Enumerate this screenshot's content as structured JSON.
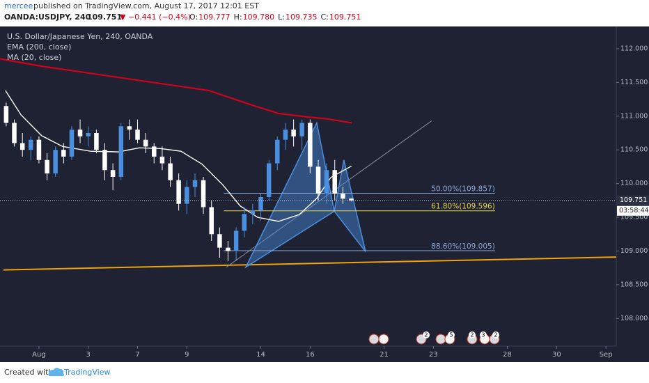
{
  "header": {
    "user": "mercee",
    "published": "published on TradingView.com, August 17, 2017 12:01 EST",
    "symbol": "OANDA:USDJPY, 240",
    "price": "109.751",
    "change": "▼ −0.441 (−0.4%)",
    "ohlc": [
      {
        "key": "O:",
        "value": "109.777"
      },
      {
        "key": "H:",
        "value": "109.780"
      },
      {
        "key": "L:",
        "value": "109.735"
      },
      {
        "key": "C:",
        "value": "109.751"
      }
    ]
  },
  "chart_data": {
    "type": "candlestick",
    "title": "U.S. Dollar/Japanese Yen, 240, OANDA",
    "up_color": "#4a8fe0",
    "down_color": "#ffffff",
    "x": [
      -1.33,
      -1,
      -0.67,
      -0.33,
      0,
      0.33,
      0.67,
      1,
      1.33,
      1.67,
      2,
      2.33,
      2.67,
      3,
      3.33,
      3.67,
      4,
      4.33,
      4.67,
      5,
      5.33,
      5.67,
      6,
      6.33,
      6.67,
      7,
      7.33,
      7.67,
      8,
      8.33,
      8.67,
      9,
      9.33,
      9.67,
      10,
      10.33,
      10.67,
      11,
      11.33,
      11.67,
      12,
      12.33,
      12.67
    ],
    "open": [
      111.15,
      110.9,
      110.6,
      110.5,
      110.65,
      110.35,
      110.15,
      110.5,
      110.4,
      110.8,
      110.7,
      110.75,
      110.5,
      110.2,
      110.1,
      110.85,
      110.8,
      110.65,
      110.55,
      110.4,
      110.3,
      110.05,
      109.7,
      109.95,
      110.05,
      109.65,
      109.25,
      109.05,
      109.0,
      109.3,
      109.55,
      109.6,
      109.8,
      110.3,
      110.65,
      110.8,
      110.7,
      110.9,
      110.25,
      109.85,
      110.2,
      109.85,
      109.777
    ],
    "high": [
      111.2,
      110.95,
      110.75,
      110.7,
      110.7,
      110.45,
      110.55,
      110.6,
      110.85,
      110.95,
      110.85,
      110.8,
      110.6,
      110.3,
      110.9,
      110.95,
      110.95,
      110.75,
      110.6,
      110.55,
      110.4,
      110.15,
      110.05,
      110.15,
      110.1,
      109.75,
      109.35,
      109.15,
      109.35,
      109.65,
      109.7,
      109.85,
      110.35,
      110.7,
      110.9,
      110.95,
      110.95,
      110.95,
      110.35,
      110.3,
      110.35,
      109.95,
      109.78
    ],
    "low": [
      110.85,
      110.55,
      110.4,
      110.35,
      110.3,
      110.05,
      110.1,
      110.3,
      110.35,
      110.6,
      110.55,
      110.45,
      110.05,
      109.9,
      110.05,
      110.65,
      110.6,
      110.45,
      110.3,
      110.2,
      109.95,
      109.6,
      109.55,
      109.8,
      109.55,
      109.15,
      108.9,
      108.85,
      108.85,
      109.2,
      109.4,
      109.45,
      109.75,
      110.2,
      110.5,
      110.55,
      110.5,
      110.15,
      109.75,
      109.7,
      109.75,
      109.7,
      109.735
    ],
    "close": [
      110.9,
      110.6,
      110.5,
      110.65,
      110.35,
      110.15,
      110.5,
      110.4,
      110.8,
      110.7,
      110.75,
      110.5,
      110.2,
      110.1,
      110.85,
      110.8,
      110.65,
      110.55,
      110.4,
      110.3,
      110.05,
      109.7,
      109.95,
      110.05,
      109.65,
      109.25,
      109.05,
      109.0,
      109.3,
      109.55,
      109.6,
      109.8,
      110.3,
      110.65,
      110.8,
      110.7,
      110.9,
      110.25,
      109.85,
      110.2,
      109.85,
      109.777,
      109.751
    ],
    "series": [
      {
        "name": "EMA (200, close)",
        "color": "#d0021b",
        "x": [
          -1.58,
          0.11,
          1.81,
          3.5,
          5.2,
          6.89,
          8.59,
          9.72,
          10.85,
          11.69,
          12.68
        ],
        "values": [
          111.85,
          111.74,
          111.65,
          111.56,
          111.47,
          111.38,
          111.17,
          111.04,
          110.99,
          110.96,
          110.9
        ]
      },
      {
        "name": "MA (20, close)",
        "color": "#ffffff",
        "x": [
          -1.36,
          -0.73,
          0.11,
          0.96,
          2.09,
          3.22,
          4.07,
          4.92,
          5.76,
          6.61,
          7.46,
          8.16,
          8.87,
          9.72,
          10.56,
          11.27,
          11.84,
          12.68
        ],
        "values": [
          111.38,
          111.02,
          110.71,
          110.55,
          110.48,
          110.47,
          110.53,
          110.52,
          110.48,
          110.29,
          109.98,
          109.67,
          109.5,
          109.44,
          109.54,
          109.78,
          110.09,
          110.26
        ]
      }
    ],
    "fib_levels": [
      {
        "label": "50.00%(109.857)",
        "value": 109.857,
        "color": "#8fa9d6"
      },
      {
        "label": "61.80%(109.596)",
        "value": 109.596,
        "color": "#e8d84a"
      },
      {
        "label": "88.60%(109.005)",
        "value": 109.005,
        "color": "#8fa9d6"
      }
    ],
    "fib_x": [
      7.5,
      18.5
    ],
    "trendlines": [
      {
        "color": "#f0a30a",
        "x": [
          -1.44,
          23.42
        ],
        "y": [
          108.72,
          108.91
        ]
      },
      {
        "color": "#8a8f9c",
        "x": [
          7.6,
          15.93
        ],
        "y": [
          108.76,
          110.93
        ]
      }
    ],
    "pattern": [
      {
        "x": [
          8.39,
          11.27,
          11.98
        ],
        "y": [
          108.76,
          110.9,
          109.59
        ]
      },
      {
        "x": [
          11.98,
          12.37,
          13.25
        ],
        "y": [
          109.59,
          110.35,
          108.99
        ]
      }
    ],
    "pattern_color": "#4a8fe0",
    "xlim": [
      -1.58,
      23.42
    ],
    "ylim": [
      107.59,
      112.33
    ],
    "xticks": [
      {
        "value": 0,
        "label": "Aug"
      },
      {
        "value": 2,
        "label": "3"
      },
      {
        "value": 4,
        "label": "7"
      },
      {
        "value": 6,
        "label": "9"
      },
      {
        "value": 9,
        "label": "14"
      },
      {
        "value": 11,
        "label": "16"
      },
      {
        "value": 14,
        "label": "21"
      },
      {
        "value": 16,
        "label": "23"
      },
      {
        "value": 19,
        "label": "28"
      },
      {
        "value": 21,
        "label": "30"
      },
      {
        "value": 23,
        "label": "Sep"
      }
    ],
    "yticks": [
      {
        "value": 108,
        "label": "108.000"
      },
      {
        "value": 108.5,
        "label": "108.500"
      },
      {
        "value": 109,
        "label": "109.000"
      },
      {
        "value": 109.5,
        "label": "109.500"
      },
      {
        "value": 110,
        "label": "110.000"
      },
      {
        "value": 110.5,
        "label": "110.500"
      },
      {
        "value": 111,
        "label": "111.000"
      },
      {
        "value": 111.5,
        "label": "111.500"
      },
      {
        "value": 112,
        "label": "112.000"
      }
    ],
    "countdown": "03:58:44",
    "event_badges": [
      "2",
      "5",
      "2",
      "3",
      "2"
    ],
    "grid": false
  },
  "footer": {
    "created": "Created with",
    "brand": "TradingView"
  }
}
